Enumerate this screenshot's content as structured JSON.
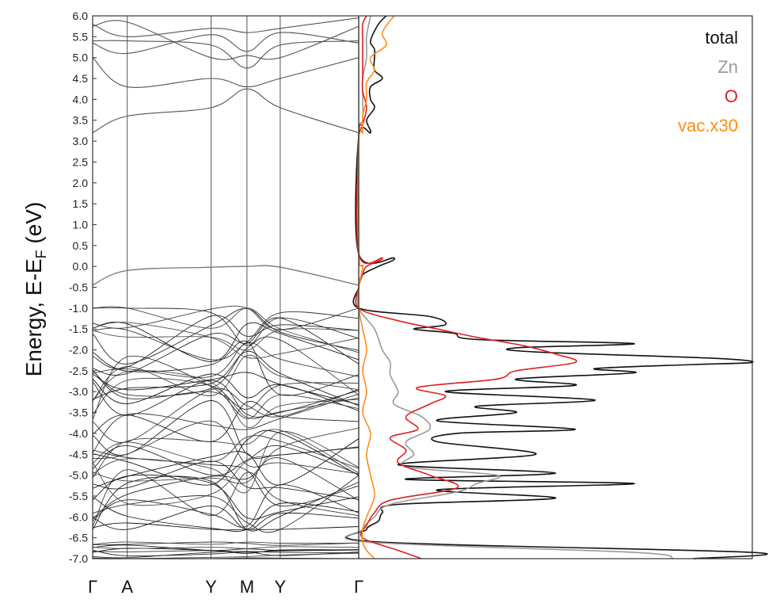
{
  "chart_data": [
    {
      "panel": "band-structure",
      "type": "line",
      "ylabel_main": "Energy, E-E",
      "ylabel_sub": "F",
      "ylabel_tail": " (eV)",
      "ylim": [
        -7.0,
        6.0
      ],
      "yticks": [
        "6.0",
        "5.5",
        "5.0",
        "4.5",
        "4.0",
        "3.5",
        "3.0",
        "2.5",
        "2.0",
        "1.5",
        "1.0",
        "0.5",
        "0.0",
        "-0.5",
        "-1.0",
        "-1.5",
        "-2.0",
        "-2.5",
        "-3.0",
        "-3.5",
        "-4.0",
        "-4.5",
        "-5.0",
        "-5.5",
        "-6.0",
        "-6.5",
        "-7.0"
      ],
      "ytick_values": [
        6.0,
        5.5,
        5.0,
        4.5,
        4.0,
        3.5,
        3.0,
        2.5,
        2.0,
        1.5,
        1.0,
        0.5,
        0.0,
        -0.5,
        -1.0,
        -1.5,
        -2.0,
        -2.5,
        -3.0,
        -3.5,
        -4.0,
        -4.5,
        -5.0,
        -5.5,
        -6.0,
        -6.5,
        -7.0
      ],
      "kpath": [
        {
          "label": "Γ",
          "pos": 0.0
        },
        {
          "label": "A",
          "pos": 0.13
        },
        {
          "label": "Y",
          "pos": 0.445
        },
        {
          "label": "M",
          "pos": 0.58
        },
        {
          "label": "Y",
          "pos": 0.705
        },
        {
          "label": "Γ",
          "pos": 1.0
        }
      ],
      "conduction_bands": [
        {
          "k": [
            0,
            0.13,
            0.445,
            0.58,
            0.705,
            1.0
          ],
          "e": [
            3.2,
            3.6,
            3.8,
            4.25,
            3.8,
            3.2
          ]
        },
        {
          "k": [
            0,
            0.13,
            0.445,
            0.58,
            0.705,
            1.0
          ],
          "e": [
            5.0,
            4.3,
            4.5,
            4.3,
            4.5,
            5.0
          ]
        },
        {
          "k": [
            0,
            0.13,
            0.445,
            0.58,
            0.705,
            1.0
          ],
          "e": [
            5.4,
            5.4,
            5.3,
            4.75,
            5.3,
            5.4
          ]
        },
        {
          "k": [
            0,
            0.13,
            0.445,
            0.58,
            0.705,
            1.0
          ],
          "e": [
            5.75,
            5.85,
            5.0,
            5.05,
            5.0,
            5.75
          ]
        },
        {
          "k": [
            0,
            0.13,
            0.445,
            0.58,
            0.705,
            1.0
          ],
          "e": [
            5.8,
            5.5,
            5.7,
            5.6,
            5.7,
            5.95
          ]
        },
        {
          "k": [
            0,
            0.13,
            0.445,
            0.58,
            0.705,
            1.0
          ],
          "e": [
            5.35,
            5.1,
            5.55,
            5.15,
            5.6,
            5.35
          ]
        }
      ],
      "defect_band": {
        "k": [
          0,
          0.13,
          0.445,
          0.58,
          0.705,
          1.0
        ],
        "e": [
          -0.45,
          -0.1,
          -0.02,
          0.0,
          -0.02,
          -0.45
        ]
      },
      "valence_band_range": [
        -6.3,
        -1.0
      ],
      "semicore_band_range": [
        -7.0,
        -6.6
      ],
      "valence_band_count": 46,
      "semicore_band_count": 10
    },
    {
      "panel": "density-of-states",
      "type": "line",
      "ylim": [
        -7.0,
        6.0
      ],
      "xlim": [
        0,
        100
      ],
      "legend_position": "top-right",
      "series": [
        {
          "name": "total",
          "color": "#111111",
          "e": [
            6.0,
            5.8,
            5.4,
            5.2,
            5.0,
            4.7,
            4.5,
            4.3,
            4.0,
            3.8,
            3.5,
            3.2,
            3.1,
            0.3,
            0.2,
            0.0,
            -0.2,
            -0.5,
            -1.0,
            -1.2,
            -1.4,
            -1.5,
            -1.6,
            -1.75,
            -1.85,
            -1.95,
            -2.05,
            -2.2,
            -2.3,
            -2.35,
            -2.45,
            -2.55,
            -2.7,
            -2.85,
            -3.0,
            -3.2,
            -3.35,
            -3.5,
            -3.7,
            -3.9,
            -4.0,
            -4.2,
            -4.5,
            -4.75,
            -4.95,
            -5.1,
            -5.2,
            -5.35,
            -5.55,
            -5.7,
            -5.9,
            -6.1,
            -6.3,
            -6.6,
            -6.85,
            -7.0
          ],
          "v": [
            7,
            5,
            3,
            4,
            4,
            4,
            6,
            3,
            3,
            4,
            2,
            3,
            0,
            0,
            9,
            5,
            1,
            0,
            0,
            18,
            22,
            14,
            24,
            30,
            70,
            40,
            45,
            90,
            100,
            85,
            60,
            70,
            40,
            55,
            22,
            60,
            30,
            40,
            20,
            55,
            25,
            20,
            45,
            10,
            50,
            12,
            70,
            20,
            50,
            10,
            6,
            5,
            2,
            5,
            100,
            85
          ]
        },
        {
          "name": "Zn",
          "color": "#9a9a9a",
          "e": [
            6.0,
            5.5,
            5.0,
            4.5,
            4.0,
            3.5,
            3.1,
            0.3,
            0.0,
            -0.5,
            -1.0,
            -1.5,
            -2.0,
            -2.3,
            -2.6,
            -3.0,
            -3.3,
            -3.6,
            -3.9,
            -4.2,
            -4.5,
            -4.8,
            -5.0,
            -5.2,
            -5.4,
            -5.7,
            -6.0,
            -6.3,
            -6.6,
            -6.85,
            -7.0
          ],
          "v": [
            3,
            2,
            2,
            1,
            1,
            1,
            0,
            0,
            1,
            0,
            0,
            4,
            6,
            8,
            8,
            10,
            9,
            16,
            18,
            12,
            14,
            12,
            35,
            30,
            25,
            8,
            4,
            1,
            2,
            70,
            80
          ]
        },
        {
          "name": "O",
          "color": "#e02020",
          "e": [
            6.0,
            5.8,
            5.4,
            5.0,
            4.6,
            4.2,
            3.8,
            3.4,
            3.1,
            0.3,
            0.2,
            0.0,
            -0.2,
            -0.5,
            -1.0,
            -1.3,
            -1.5,
            -1.7,
            -1.9,
            -2.1,
            -2.3,
            -2.5,
            -2.7,
            -2.9,
            -3.1,
            -3.3,
            -3.6,
            -3.9,
            -4.1,
            -4.4,
            -4.7,
            -5.0,
            -5.3,
            -5.6,
            -5.9,
            -6.2,
            -6.5,
            -6.8,
            -7.0
          ],
          "v": [
            2,
            1,
            1,
            1,
            1,
            1,
            2,
            1,
            0,
            0,
            6,
            2,
            1,
            0,
            0,
            10,
            20,
            30,
            42,
            50,
            55,
            40,
            35,
            15,
            22,
            18,
            12,
            15,
            8,
            12,
            10,
            18,
            25,
            8,
            4,
            2,
            1,
            10,
            16
          ]
        },
        {
          "name": "vac.x30",
          "color": "#ff8c1a",
          "e": [
            6.0,
            5.6,
            5.3,
            5.0,
            4.7,
            4.4,
            4.0,
            3.6,
            3.2,
            3.1,
            0.3,
            0.0,
            -0.5,
            -1.0,
            -1.5,
            -2.0,
            -2.5,
            -3.0,
            -3.5,
            -4.0,
            -4.5,
            -5.0,
            -5.5,
            -6.0,
            -6.3,
            -6.6,
            -6.8,
            -7.0
          ],
          "v": [
            9,
            6,
            7,
            3,
            4,
            2,
            2,
            1,
            1,
            0,
            0,
            1,
            0,
            0,
            1,
            2,
            1,
            2,
            1,
            3,
            2,
            3,
            4,
            2,
            1,
            1,
            2,
            4
          ]
        }
      ]
    }
  ],
  "legend": {
    "items": [
      {
        "label": "total",
        "color": "#111111"
      },
      {
        "label": "Zn",
        "color": "#9a9a9a"
      },
      {
        "label": "O",
        "color": "#e02020"
      },
      {
        "label": "vac.x30",
        "color": "#ff8c1a"
      }
    ]
  }
}
